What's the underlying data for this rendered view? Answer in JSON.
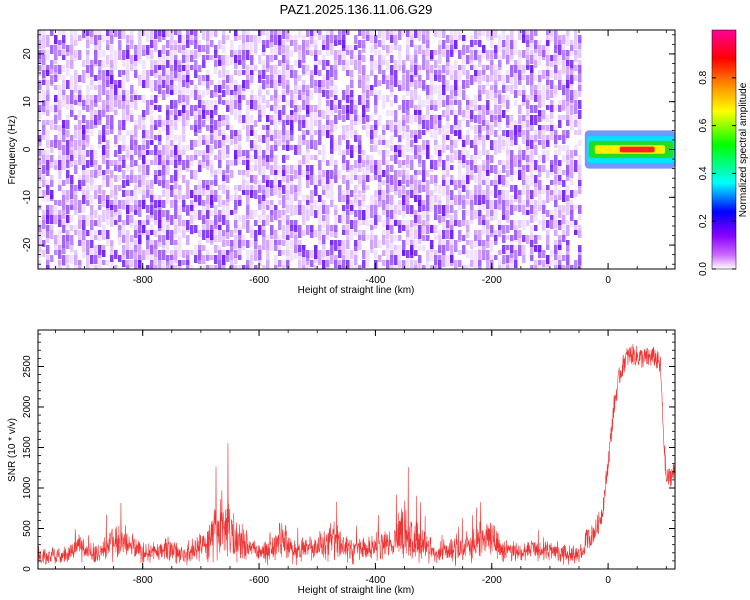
{
  "title": "PAZ1.2025.136.11.06.G29",
  "chart_data": [
    {
      "type": "heatmap",
      "xlabel": "Height of straight line (km)",
      "ylabel": "Frequency (Hz)",
      "xlim": [
        -980,
        115
      ],
      "ylim": [
        -25,
        25
      ],
      "xticks": [
        -800,
        -600,
        -400,
        -200,
        0
      ],
      "yticks": [
        -20,
        -10,
        0,
        10,
        20
      ],
      "colorbar": {
        "label": "Normalized spectral amplitude",
        "range": [
          0.0,
          1.0
        ],
        "ticks": [
          0.0,
          0.2,
          0.4,
          0.6,
          0.8
        ],
        "colormap": [
          "#ffffff",
          "#cc66ff",
          "#8800ff",
          "#0000ff",
          "#00ffff",
          "#00ff00",
          "#ffff00",
          "#ff8000",
          "#ff0000",
          "#ff0099"
        ]
      },
      "noise_region": {
        "x": [
          -980,
          -50
        ],
        "y": [
          -25,
          25
        ],
        "amplitude": [
          0.05,
          0.2
        ]
      },
      "signal_band": {
        "x": [
          -40,
          115
        ],
        "y_center": 0,
        "y_halfwidth": 2,
        "peak_x": [
          20,
          80
        ],
        "peak_amplitude": 0.9
      }
    },
    {
      "type": "line",
      "xlabel": "Height of straight line (km)",
      "ylabel": "SNR (10 * v/v)",
      "xlim": [
        -980,
        115
      ],
      "ylim": [
        0,
        2950
      ],
      "xticks": [
        -800,
        -600,
        -400,
        -200,
        0
      ],
      "yticks": [
        0,
        500,
        1000,
        1500,
        2000,
        2500
      ],
      "color": "#ee3333",
      "series": [
        {
          "x": [
            -980,
            -940,
            -910,
            -880,
            -845,
            -800,
            -760,
            -730,
            -690,
            -670,
            -660,
            -640,
            -620,
            -600,
            -560,
            -540,
            -500,
            -480,
            -440,
            -410,
            -380,
            -370,
            -355,
            -330,
            -300,
            -270,
            -240,
            -200,
            -180,
            -160,
            -120,
            -80,
            -50,
            -30,
            -20,
            -10,
            0,
            10,
            20,
            30,
            40,
            60,
            80,
            90,
            95,
            100,
            115
          ],
          "y": [
            220,
            250,
            600,
            300,
            1050,
            350,
            500,
            280,
            800,
            1550,
            1920,
            1050,
            800,
            350,
            1120,
            500,
            700,
            1050,
            500,
            650,
            920,
            550,
            1700,
            1000,
            400,
            550,
            700,
            1180,
            500,
            450,
            500,
            420,
            300,
            400,
            500,
            700,
            1300,
            2000,
            2400,
            2600,
            2650,
            2600,
            2620,
            2500,
            1700,
            1100,
            1200
          ]
        }
      ]
    }
  ]
}
